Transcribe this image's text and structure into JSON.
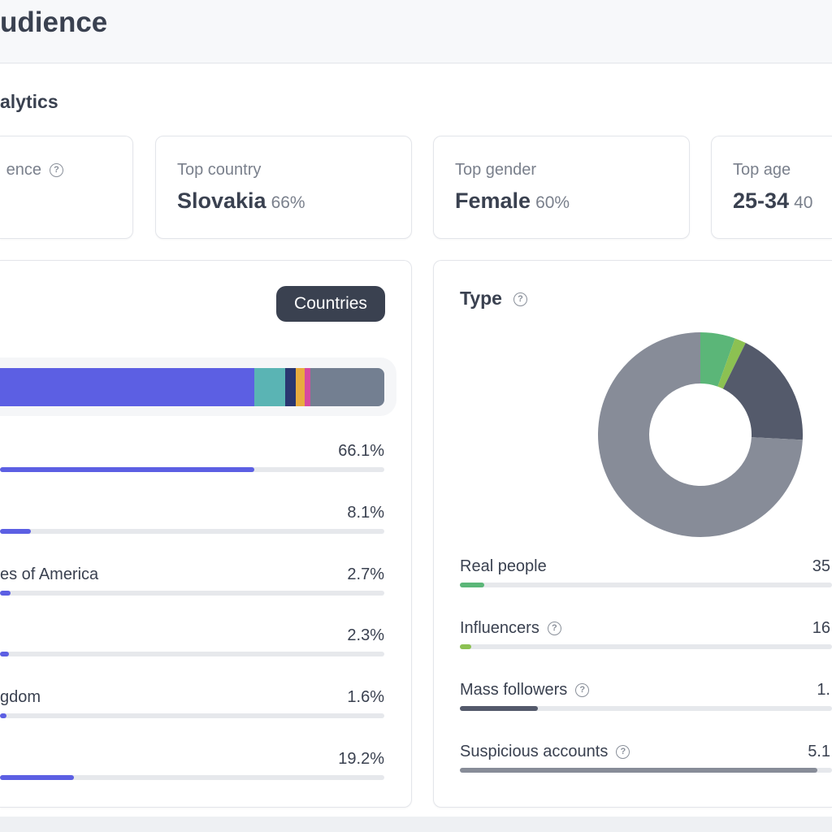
{
  "header": {
    "title": "udience"
  },
  "section_title": "alytics",
  "cards": [
    {
      "label": "ence",
      "value": "",
      "pct": ""
    },
    {
      "label": "Top country",
      "value": "Slovakia",
      "pct": "66%"
    },
    {
      "label": "Top gender",
      "value": "Female",
      "pct": "60%"
    },
    {
      "label": "Top age",
      "value": "25-34",
      "pct": "40"
    }
  ],
  "countries": {
    "button": "Countries",
    "stack": [
      {
        "pct": 66.1,
        "color": "#5c5fe3"
      },
      {
        "pct": 8.1,
        "color": "#5ab4b4"
      },
      {
        "pct": 2.7,
        "color": "#2a3670"
      },
      {
        "pct": 2.3,
        "color": "#e8ab3f"
      },
      {
        "pct": 1.6,
        "color": "#d64aa0"
      },
      {
        "pct": 19.2,
        "color": "#737f91"
      }
    ],
    "rows": [
      {
        "label": "",
        "value": "66.1%",
        "pct": 66.1
      },
      {
        "label": "",
        "value": "8.1%",
        "pct": 8.1
      },
      {
        "label": "es of America",
        "value": "2.7%",
        "pct": 2.7
      },
      {
        "label": "",
        "value": "2.3%",
        "pct": 2.3
      },
      {
        "label": "gdom",
        "value": "1.6%",
        "pct": 1.6
      },
      {
        "label": "",
        "value": "19.2%",
        "pct": 19.2
      }
    ],
    "bar_color": "#5c5fe3"
  },
  "type": {
    "title": "Type",
    "donut": [
      {
        "pct": 5.5,
        "color": "#5bb678"
      },
      {
        "pct": 1.8,
        "color": "#8cc152"
      },
      {
        "pct": 18.5,
        "color": "#545a6b"
      },
      {
        "pct": 74.2,
        "color": "#878c98"
      }
    ],
    "rows": [
      {
        "label": "Real people",
        "value": "35",
        "help": false,
        "fill": 6.5,
        "color": "#5bb678"
      },
      {
        "label": "Influencers",
        "value": "16",
        "help": true,
        "fill": 3,
        "color": "#8cc152"
      },
      {
        "label": "Mass followers",
        "value": "1.",
        "help": true,
        "fill": 21,
        "color": "#545a6b"
      },
      {
        "label": "Suspicious accounts",
        "value": "5.1",
        "help": true,
        "fill": 96,
        "color": "#878c98"
      }
    ]
  }
}
